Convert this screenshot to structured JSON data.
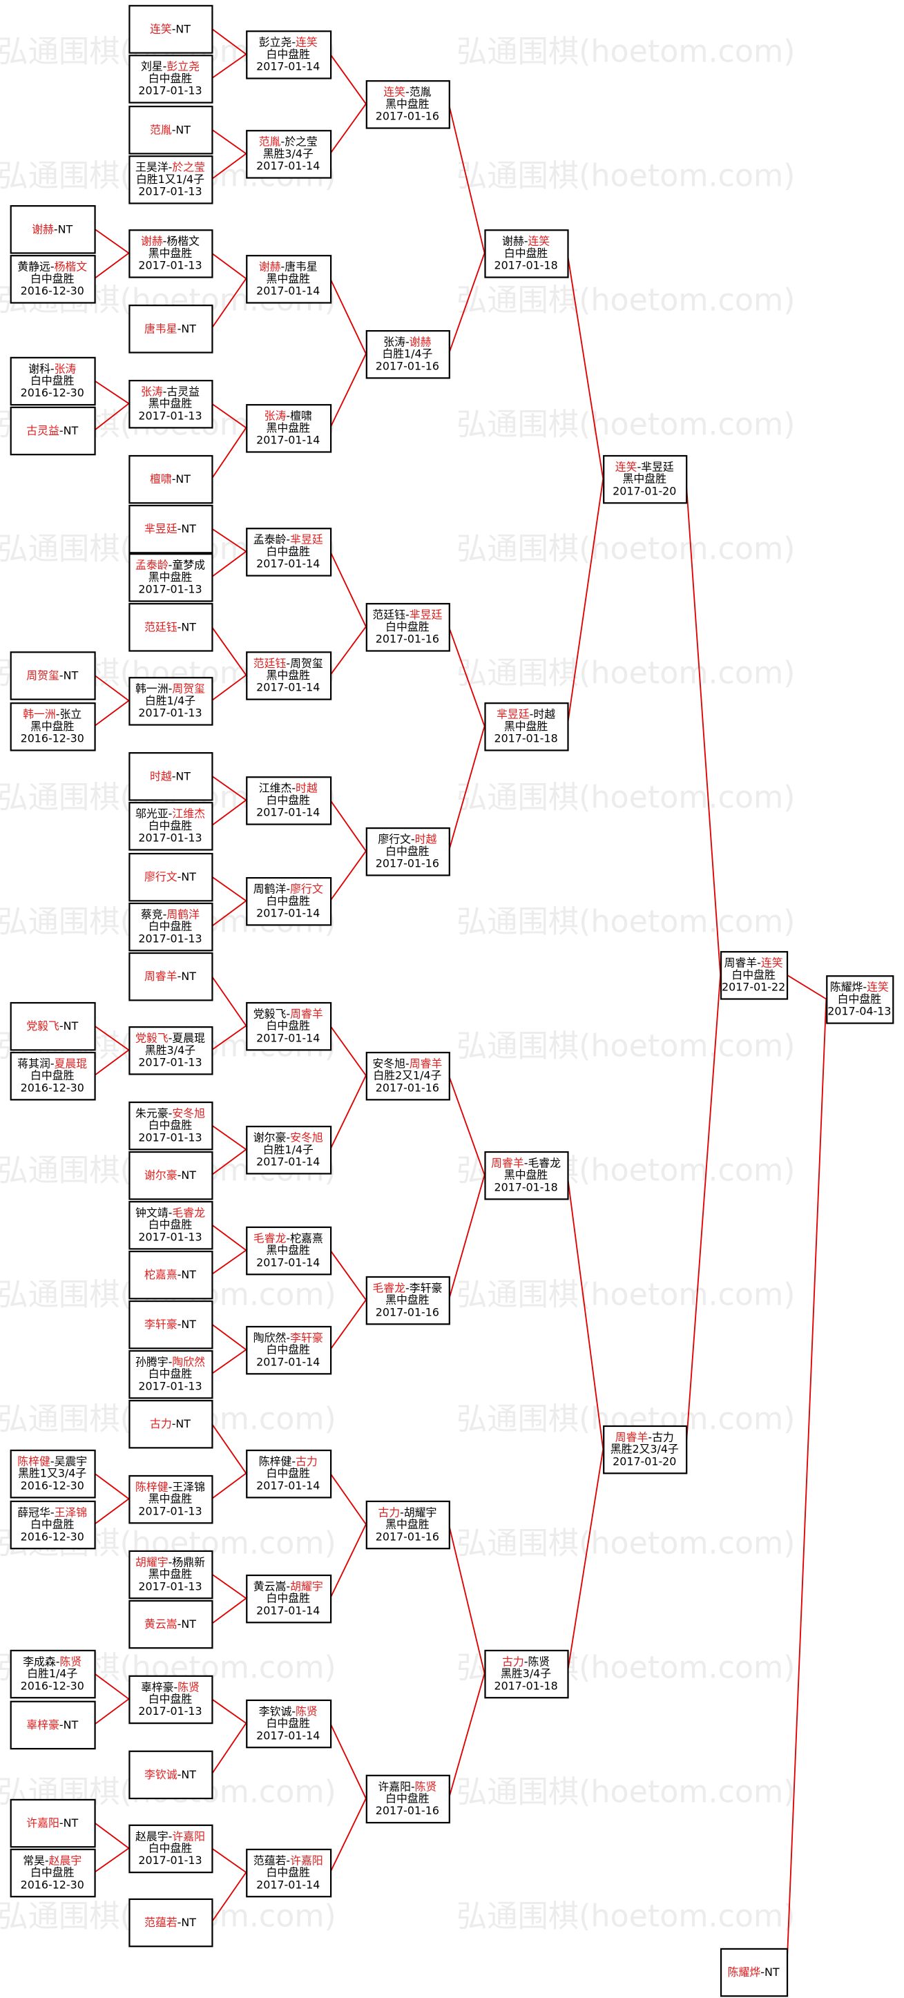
{
  "watermark": "弘通围棋(hoetom.com)",
  "separator": "-",
  "boxes": [
    {
      "p": [
        "谢赫",
        "NT"
      ],
      "w": 0
    },
    {
      "p": [
        "黄静远",
        "杨楷文"
      ],
      "w": 1,
      "r": [
        "白中盘胜",
        "2016-12-30"
      ]
    },
    {
      "p": [
        "谢科",
        "张涛"
      ],
      "w": 1,
      "r": [
        "白中盘胜",
        "2016-12-30"
      ]
    },
    {
      "p": [
        "古灵益",
        "NT"
      ],
      "w": 0
    },
    {
      "p": [
        "周贺玺",
        "NT"
      ],
      "w": 0
    },
    {
      "p": [
        "韩一洲",
        "张立"
      ],
      "w": 0,
      "r": [
        "黑中盘胜",
        "2016-12-30"
      ]
    },
    {
      "p": [
        "党毅飞",
        "NT"
      ],
      "w": 0
    },
    {
      "p": [
        "蒋其润",
        "夏晨琨"
      ],
      "w": 1,
      "r": [
        "白中盘胜",
        "2016-12-30"
      ]
    },
    {
      "p": [
        "陈梓健",
        "吴震宇"
      ],
      "w": 0,
      "r": [
        "黑胜1又3/4子",
        "2016-12-30"
      ]
    },
    {
      "p": [
        "薛冠华",
        "王泽锦"
      ],
      "w": 1,
      "r": [
        "白中盘胜",
        "2016-12-30"
      ]
    },
    {
      "p": [
        "李成森",
        "陈贤"
      ],
      "w": 1,
      "r": [
        "白胜1/4子",
        "2016-12-30"
      ]
    },
    {
      "p": [
        "辜梓豪",
        "NT"
      ],
      "w": 0
    },
    {
      "p": [
        "许嘉阳",
        "NT"
      ],
      "w": 0
    },
    {
      "p": [
        "常昊",
        "赵晨宇"
      ],
      "w": 1,
      "r": [
        "白中盘胜",
        "2016-12-30"
      ]
    },
    {
      "p": [
        "连笑",
        "NT"
      ],
      "w": 0
    },
    {
      "p": [
        "刘星",
        "彭立尧"
      ],
      "w": 1,
      "r": [
        "白中盘胜",
        "2017-01-13"
      ]
    },
    {
      "p": [
        "范胤",
        "NT"
      ],
      "w": 0
    },
    {
      "p": [
        "王昊洋",
        "於之莹"
      ],
      "w": 1,
      "r": [
        "白胜1又1/4子",
        "2017-01-13"
      ]
    },
    {
      "p": [
        "谢赫",
        "杨楷文"
      ],
      "w": 0,
      "r": [
        "黑中盘胜",
        "2017-01-13"
      ]
    },
    {
      "p": [
        "唐韦星",
        "NT"
      ],
      "w": 0
    },
    {
      "p": [
        "张涛",
        "古灵益"
      ],
      "w": 0,
      "r": [
        "黑中盘胜",
        "2017-01-13"
      ]
    },
    {
      "p": [
        "檀啸",
        "NT"
      ],
      "w": 0
    },
    {
      "p": [
        "芈昱廷",
        "NT"
      ],
      "w": 0
    },
    {
      "p": [
        "孟泰龄",
        "童梦成"
      ],
      "w": 0,
      "r": [
        "黑中盘胜",
        "2017-01-13"
      ]
    },
    {
      "p": [
        "范廷钰",
        "NT"
      ],
      "w": 0
    },
    {
      "p": [
        "韩一洲",
        "周贺玺"
      ],
      "w": 1,
      "r": [
        "白胜1/4子",
        "2017-01-13"
      ]
    },
    {
      "p": [
        "时越",
        "NT"
      ],
      "w": 0
    },
    {
      "p": [
        "邬光亚",
        "江维杰"
      ],
      "w": 1,
      "r": [
        "白中盘胜",
        "2017-01-13"
      ]
    },
    {
      "p": [
        "廖行文",
        "NT"
      ],
      "w": 0
    },
    {
      "p": [
        "蔡竞",
        "周鹤洋"
      ],
      "w": 1,
      "r": [
        "白中盘胜",
        "2017-01-13"
      ]
    },
    {
      "p": [
        "周睿羊",
        "NT"
      ],
      "w": 0
    },
    {
      "p": [
        "党毅飞",
        "夏晨琨"
      ],
      "w": 0,
      "r": [
        "黑胜3/4子",
        "2017-01-13"
      ]
    },
    {
      "p": [
        "朱元豪",
        "安冬旭"
      ],
      "w": 1,
      "r": [
        "白中盘胜",
        "2017-01-13"
      ]
    },
    {
      "p": [
        "谢尔豪",
        "NT"
      ],
      "w": 0
    },
    {
      "p": [
        "钟文靖",
        "毛睿龙"
      ],
      "w": 1,
      "r": [
        "白中盘胜",
        "2017-01-13"
      ]
    },
    {
      "p": [
        "柁嘉熹",
        "NT"
      ],
      "w": 0
    },
    {
      "p": [
        "李轩豪",
        "NT"
      ],
      "w": 0
    },
    {
      "p": [
        "孙腾宇",
        "陶欣然"
      ],
      "w": 1,
      "r": [
        "白中盘胜",
        "2017-01-13"
      ]
    },
    {
      "p": [
        "古力",
        "NT"
      ],
      "w": 0
    },
    {
      "p": [
        "陈梓健",
        "王泽锦"
      ],
      "w": 0,
      "r": [
        "黑中盘胜",
        "2017-01-13"
      ]
    },
    {
      "p": [
        "胡耀宇",
        "杨鼎新"
      ],
      "w": 0,
      "r": [
        "黑中盘胜",
        "2017-01-13"
      ]
    },
    {
      "p": [
        "黄云嵩",
        "NT"
      ],
      "w": 0
    },
    {
      "p": [
        "辜梓豪",
        "陈贤"
      ],
      "w": 1,
      "r": [
        "白中盘胜",
        "2017-01-13"
      ]
    },
    {
      "p": [
        "李钦诚",
        "NT"
      ],
      "w": 0
    },
    {
      "p": [
        "赵晨宇",
        "许嘉阳"
      ],
      "w": 1,
      "r": [
        "白中盘胜",
        "2017-01-13"
      ]
    },
    {
      "p": [
        "范蕴若",
        "NT"
      ],
      "w": 0
    },
    {
      "p": [
        "彭立尧",
        "连笑"
      ],
      "w": 1,
      "r": [
        "白中盘胜",
        "2017-01-14"
      ]
    },
    {
      "p": [
        "范胤",
        "於之莹"
      ],
      "w": 0,
      "r": [
        "黑胜3/4子",
        "2017-01-14"
      ]
    },
    {
      "p": [
        "谢赫",
        "唐韦星"
      ],
      "w": 0,
      "r": [
        "黑中盘胜",
        "2017-01-14"
      ]
    },
    {
      "p": [
        "张涛",
        "檀啸"
      ],
      "w": 0,
      "r": [
        "黑中盘胜",
        "2017-01-14"
      ]
    },
    {
      "p": [
        "孟泰龄",
        "芈昱廷"
      ],
      "w": 1,
      "r": [
        "白中盘胜",
        "2017-01-14"
      ]
    },
    {
      "p": [
        "范廷钰",
        "周贺玺"
      ],
      "w": 0,
      "r": [
        "黑中盘胜",
        "2017-01-14"
      ]
    },
    {
      "p": [
        "江维杰",
        "时越"
      ],
      "w": 1,
      "r": [
        "白中盘胜",
        "2017-01-14"
      ]
    },
    {
      "p": [
        "周鹤洋",
        "廖行文"
      ],
      "w": 1,
      "r": [
        "白中盘胜",
        "2017-01-14"
      ]
    },
    {
      "p": [
        "党毅飞",
        "周睿羊"
      ],
      "w": 1,
      "r": [
        "白中盘胜",
        "2017-01-14"
      ]
    },
    {
      "p": [
        "谢尔豪",
        "安冬旭"
      ],
      "w": 1,
      "r": [
        "白胜1/4子",
        "2017-01-14"
      ]
    },
    {
      "p": [
        "毛睿龙",
        "柁嘉熹"
      ],
      "w": 0,
      "r": [
        "黑中盘胜",
        "2017-01-14"
      ]
    },
    {
      "p": [
        "陶欣然",
        "李轩豪"
      ],
      "w": 1,
      "r": [
        "白中盘胜",
        "2017-01-14"
      ]
    },
    {
      "p": [
        "陈梓健",
        "古力"
      ],
      "w": 1,
      "r": [
        "白中盘胜",
        "2017-01-14"
      ]
    },
    {
      "p": [
        "黄云嵩",
        "胡耀宇"
      ],
      "w": 1,
      "r": [
        "白中盘胜",
        "2017-01-14"
      ]
    },
    {
      "p": [
        "李钦诚",
        "陈贤"
      ],
      "w": 1,
      "r": [
        "白中盘胜",
        "2017-01-14"
      ]
    },
    {
      "p": [
        "范蕴若",
        "许嘉阳"
      ],
      "w": 1,
      "r": [
        "白中盘胜",
        "2017-01-14"
      ]
    },
    {
      "p": [
        "连笑",
        "范胤"
      ],
      "w": 0,
      "r": [
        "黑中盘胜",
        "2017-01-16"
      ]
    },
    {
      "p": [
        "张涛",
        "谢赫"
      ],
      "w": 1,
      "r": [
        "白胜1/4子",
        "2017-01-16"
      ]
    },
    {
      "p": [
        "范廷钰",
        "芈昱廷"
      ],
      "w": 1,
      "r": [
        "白中盘胜",
        "2017-01-16"
      ]
    },
    {
      "p": [
        "廖行文",
        "时越"
      ],
      "w": 1,
      "r": [
        "白中盘胜",
        "2017-01-16"
      ]
    },
    {
      "p": [
        "安冬旭",
        "周睿羊"
      ],
      "w": 1,
      "r": [
        "白胜2又1/4子",
        "2017-01-16"
      ]
    },
    {
      "p": [
        "毛睿龙",
        "李轩豪"
      ],
      "w": 0,
      "r": [
        "黑中盘胜",
        "2017-01-16"
      ]
    },
    {
      "p": [
        "古力",
        "胡耀宇"
      ],
      "w": 0,
      "r": [
        "黑中盘胜",
        "2017-01-16"
      ]
    },
    {
      "p": [
        "许嘉阳",
        "陈贤"
      ],
      "w": 1,
      "r": [
        "白中盘胜",
        "2017-01-16"
      ]
    },
    {
      "p": [
        "谢赫",
        "连笑"
      ],
      "w": 1,
      "r": [
        "白中盘胜",
        "2017-01-18"
      ]
    },
    {
      "p": [
        "芈昱廷",
        "时越"
      ],
      "w": 0,
      "r": [
        "黑中盘胜",
        "2017-01-18"
      ]
    },
    {
      "p": [
        "周睿羊",
        "毛睿龙"
      ],
      "w": 0,
      "r": [
        "黑中盘胜",
        "2017-01-18"
      ]
    },
    {
      "p": [
        "古力",
        "陈贤"
      ],
      "w": 0,
      "r": [
        "黑胜3/4子",
        "2017-01-18"
      ]
    },
    {
      "p": [
        "连笑",
        "芈昱廷"
      ],
      "w": 0,
      "r": [
        "黑中盘胜",
        "2017-01-20"
      ]
    },
    {
      "p": [
        "周睿羊",
        "古力"
      ],
      "w": 0,
      "r": [
        "黑胜2又3/4子",
        "2017-01-20"
      ]
    },
    {
      "p": [
        "周睿羊",
        "连笑"
      ],
      "w": 1,
      "r": [
        "白中盘胜",
        "2017-01-22"
      ]
    },
    {
      "p": [
        "陈耀烨",
        "NT"
      ],
      "w": 0
    },
    {
      "p": [
        "陈耀烨",
        "连笑"
      ],
      "w": 1,
      "r": [
        "白中盘胜",
        "2017-04-13"
      ]
    }
  ]
}
